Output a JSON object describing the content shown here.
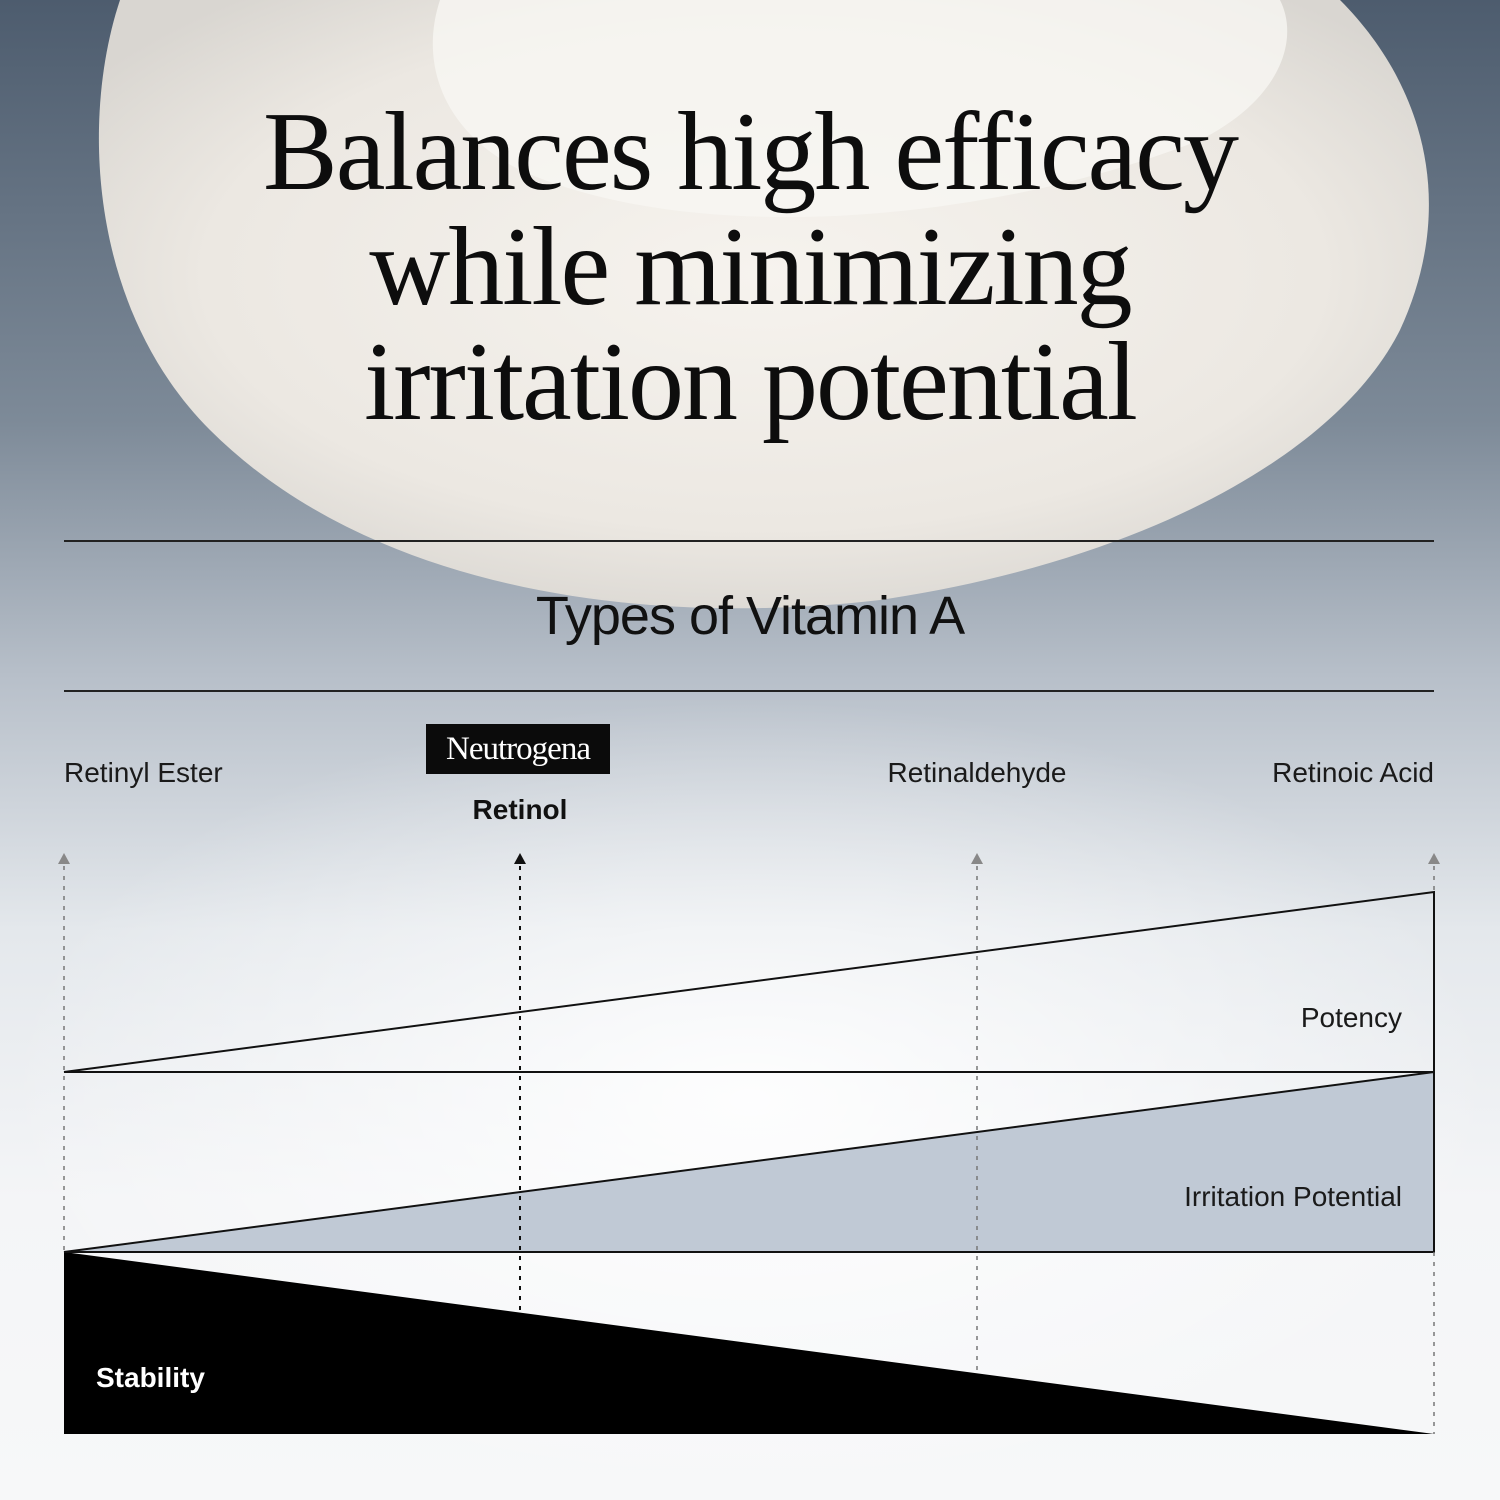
{
  "headline": {
    "lines": [
      "Balances high efficacy",
      "while minimizing",
      "irritation potential"
    ]
  },
  "section_title": "Types of Vitamin A",
  "types": [
    {
      "label": "Retinyl Ester",
      "highlighted": false
    },
    {
      "label": "Retinol",
      "highlighted": true,
      "brand": "Neutrogena"
    },
    {
      "label": "Retinaldehyde",
      "highlighted": false
    },
    {
      "label": "Retinoic Acid",
      "highlighted": false
    }
  ],
  "bands": {
    "potency": "Potency",
    "irritation": "Irritation Potential",
    "stability": "Stability"
  },
  "colors": {
    "irritation_fill": "#c0c9d5",
    "stability_fill": "#000000",
    "line": "#111111"
  }
}
